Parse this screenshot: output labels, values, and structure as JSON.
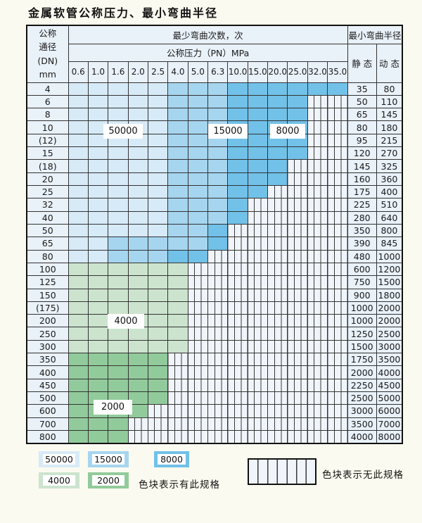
{
  "title": "金属软管公称压力、最小弯曲半径",
  "table": {
    "header": {
      "dn_lines": [
        "公称",
        "通径",
        "(DN)",
        "mm"
      ],
      "cycles_header": "最少弯曲次数，次",
      "pressure_header": "公称压力（PN）MPa",
      "pressures": [
        "0.6",
        "1.0",
        "1.6",
        "2.0",
        "2.5",
        "4.0",
        "5.0",
        "6.3",
        "10.0",
        "15.0",
        "20.0",
        "25.0",
        "32.0",
        "35.0"
      ],
      "radius_header": "最小弯曲半径",
      "static_label": "静 态",
      "dynamic_label": "动 态"
    },
    "rows": [
      {
        "dn": "4",
        "zones": "LLLLLMMMDDDDDD",
        "static": "35",
        "dynamic": "80"
      },
      {
        "dn": "6",
        "zones": "LLLLLMMMDDDDXX",
        "static": "50",
        "dynamic": "110"
      },
      {
        "dn": "8",
        "zones": "LLLLLMMMDDDDXX",
        "static": "65",
        "dynamic": "145"
      },
      {
        "dn": "10",
        "zones": "LLLLLMMMDDDDXX",
        "static": "80",
        "dynamic": "180"
      },
      {
        "dn": "(12)",
        "zones": "LLLLLMMMDDDDXX",
        "static": "95",
        "dynamic": "215"
      },
      {
        "dn": "15",
        "zones": "LLLLLMMMDDDDXX",
        "static": "120",
        "dynamic": "270"
      },
      {
        "dn": "(18)",
        "zones": "LLLLLMMMDDDXXX",
        "static": "145",
        "dynamic": "325"
      },
      {
        "dn": "20",
        "zones": "LLLLLMMMDDDXXX",
        "static": "160",
        "dynamic": "360"
      },
      {
        "dn": "25",
        "zones": "LLLLLMMMDDXXXX",
        "static": "175",
        "dynamic": "400"
      },
      {
        "dn": "32",
        "zones": "LLLLLMMMDXXXXX",
        "static": "225",
        "dynamic": "510"
      },
      {
        "dn": "40",
        "zones": "LLLLLMMMDXXXXX",
        "static": "280",
        "dynamic": "640"
      },
      {
        "dn": "50",
        "zones": "LLLLLMMDXXXXXX",
        "static": "350",
        "dynamic": "800"
      },
      {
        "dn": "65",
        "zones": "LLMMMMMDXXXXXX",
        "static": "390",
        "dynamic": "845"
      },
      {
        "dn": "80",
        "zones": "LLMMMDDXXXXXXX",
        "static": "480",
        "dynamic": "1000"
      },
      {
        "dn": "100",
        "zones": "444444XXXXXXXX",
        "static": "600",
        "dynamic": "1200"
      },
      {
        "dn": "125",
        "zones": "444444XXXXXXXX",
        "static": "750",
        "dynamic": "1500"
      },
      {
        "dn": "150",
        "zones": "444444XXXXXXXX",
        "static": "900",
        "dynamic": "1800"
      },
      {
        "dn": "(175)",
        "zones": "444444XXXXXXXX",
        "static": "1000",
        "dynamic": "2000"
      },
      {
        "dn": "200",
        "zones": "444444XXXXXXXX",
        "static": "1000",
        "dynamic": "2000"
      },
      {
        "dn": "250",
        "zones": "444444XXXXXXXX",
        "static": "1250",
        "dynamic": "2500"
      },
      {
        "dn": "300",
        "zones": "444444XXXXXXXX",
        "static": "1500",
        "dynamic": "3000"
      },
      {
        "dn": "350",
        "zones": "22222XXXXXXXXX",
        "static": "1750",
        "dynamic": "3500"
      },
      {
        "dn": "400",
        "zones": "22222XXXXXXXXX",
        "static": "2000",
        "dynamic": "4000"
      },
      {
        "dn": "450",
        "zones": "22222XXXXXXXXX",
        "static": "2250",
        "dynamic": "4500"
      },
      {
        "dn": "500",
        "zones": "22222XXXXXXXXX",
        "static": "2500",
        "dynamic": "5000"
      },
      {
        "dn": "600",
        "zones": "2222XXXXXXXXXX",
        "static": "3000",
        "dynamic": "6000"
      },
      {
        "dn": "700",
        "zones": "222XXXXXXXXXXX",
        "static": "3500",
        "dynamic": "7000"
      },
      {
        "dn": "800",
        "zones": "222XXXXXXXXXXX",
        "static": "4000",
        "dynamic": "8000"
      }
    ]
  },
  "overlays": [
    {
      "label": "50000"
    },
    {
      "label": "15000"
    },
    {
      "label": "8000"
    },
    {
      "label": "4000"
    },
    {
      "label": "2000"
    }
  ],
  "legend": {
    "items": [
      {
        "zone": "L",
        "label": "50000"
      },
      {
        "zone": "M",
        "label": "15000"
      },
      {
        "zone": "D",
        "label": "8000"
      },
      {
        "zone": "4",
        "label": "4000"
      },
      {
        "zone": "2",
        "label": "2000"
      }
    ],
    "has_spec_text": "色块表示有此规格",
    "no_spec_text": "色块表示无此规格"
  },
  "colors": {
    "c50000": "#D7EAF7",
    "c15000": "#A6D5F0",
    "c8000": "#72C1E8",
    "c4000": "#CCE4CE",
    "c2000": "#92CB9B",
    "cell_bg": "#F0F5FB",
    "table_head_bg": "#E9F1F9",
    "hatch_line": "#3A3A3A",
    "grid_line": "#333333",
    "page_bg": "#FBFAF0"
  }
}
